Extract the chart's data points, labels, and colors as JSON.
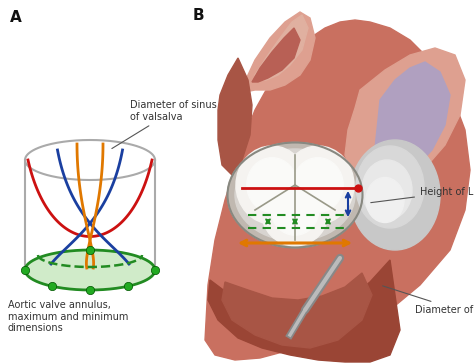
{
  "panel_A_label": "A",
  "panel_B_label": "B",
  "bg_color": "#ffffff",
  "label_diameter_sinus": "Diameter of sinus\nof valsalva",
  "label_annulus": "Aortic valve annulus,\nmaximum and minimum\ndimensions",
  "label_height_lms": "Height of LMS",
  "label_diameter_lvot": "Diameter of LVOT",
  "text_color": "#333333",
  "figsize": [
    4.74,
    3.64
  ],
  "dpi": 100,
  "line_red": "#cc1111",
  "line_blue": "#1a3fa0",
  "line_orange": "#e07800",
  "line_green": "#228b22",
  "green_fill": "#c8e8c0",
  "dot_green": "#22aa22",
  "aorta_main": "#c97060",
  "aorta_light": "#dea090",
  "aorta_dark": "#a85545",
  "aorta_inner": "#b86055",
  "aorta_highlight": "#e0b0a0",
  "tissue_dark": "#9a4535",
  "lms_gray": "#c8c8c8",
  "lms_light": "#e8e8e8",
  "valve_bg": "#d8d0c8",
  "valve_white": "#f0eeea",
  "valve_light": "#e8e4e0",
  "purple_tissue": "#b0a0c0",
  "probe_dark": "#888888",
  "probe_light": "#cccccc"
}
